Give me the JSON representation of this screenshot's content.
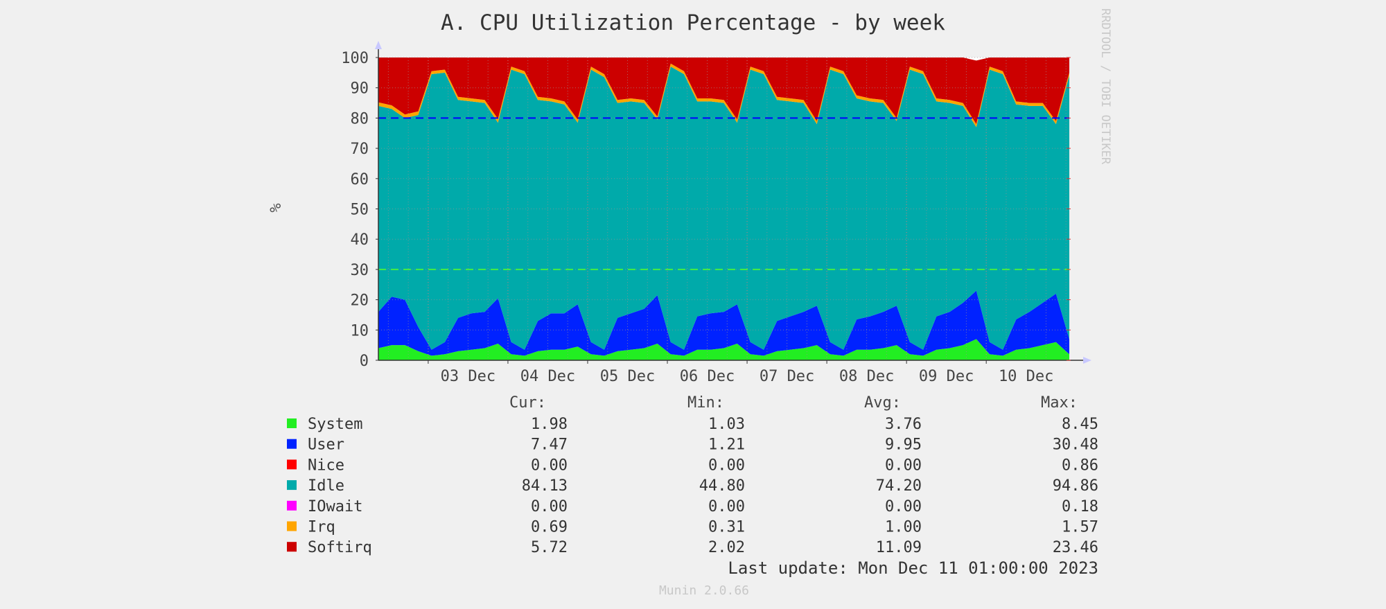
{
  "chart_data": {
    "type": "area",
    "title": "A. CPU Utilization Percentage - by week",
    "ylabel": "%",
    "xlabel": "",
    "ylim": [
      0,
      100
    ],
    "yticks": [
      0,
      10,
      20,
      30,
      40,
      50,
      60,
      70,
      80,
      90,
      100
    ],
    "grid": true,
    "stacked": true,
    "x_range": [
      "2023-12-02T09:00",
      "2023-12-11T01:00"
    ],
    "x_tick_labels": [
      {
        "date": "2023-12-03",
        "label": "03 Dec"
      },
      {
        "date": "2023-12-04",
        "label": "04 Dec"
      },
      {
        "date": "2023-12-05",
        "label": "05 Dec"
      },
      {
        "date": "2023-12-06",
        "label": "06 Dec"
      },
      {
        "date": "2023-12-07",
        "label": "07 Dec"
      },
      {
        "date": "2023-12-08",
        "label": "08 Dec"
      },
      {
        "date": "2023-12-09",
        "label": "09 Dec"
      },
      {
        "date": "2023-12-10",
        "label": "10 Dec"
      }
    ],
    "x": [
      "2023-12-02T09:00",
      "2023-12-02T13:00",
      "2023-12-02T17:00",
      "2023-12-02T21:00",
      "2023-12-03T01:00",
      "2023-12-03T05:00",
      "2023-12-03T09:00",
      "2023-12-03T13:00",
      "2023-12-03T17:00",
      "2023-12-03T21:00",
      "2023-12-04T01:00",
      "2023-12-04T05:00",
      "2023-12-04T09:00",
      "2023-12-04T13:00",
      "2023-12-04T17:00",
      "2023-12-04T21:00",
      "2023-12-05T01:00",
      "2023-12-05T05:00",
      "2023-12-05T09:00",
      "2023-12-05T13:00",
      "2023-12-05T17:00",
      "2023-12-05T21:00",
      "2023-12-06T01:00",
      "2023-12-06T05:00",
      "2023-12-06T09:00",
      "2023-12-06T13:00",
      "2023-12-06T17:00",
      "2023-12-06T21:00",
      "2023-12-07T01:00",
      "2023-12-07T05:00",
      "2023-12-07T09:00",
      "2023-12-07T13:00",
      "2023-12-07T17:00",
      "2023-12-07T21:00",
      "2023-12-08T01:00",
      "2023-12-08T05:00",
      "2023-12-08T09:00",
      "2023-12-08T13:00",
      "2023-12-08T17:00",
      "2023-12-08T21:00",
      "2023-12-09T01:00",
      "2023-12-09T05:00",
      "2023-12-09T09:00",
      "2023-12-09T13:00",
      "2023-12-09T17:00",
      "2023-12-09T21:00",
      "2023-12-10T01:00",
      "2023-12-10T05:00",
      "2023-12-10T09:00",
      "2023-12-10T13:00",
      "2023-12-10T17:00",
      "2023-12-10T21:00",
      "2023-12-11T01:00"
    ],
    "series": [
      {
        "name": "System",
        "color": "#22ee22",
        "values": [
          4,
          5,
          5,
          3,
          1.5,
          2,
          3,
          3.5,
          4,
          5.5,
          2,
          1.5,
          3,
          3.5,
          3.5,
          4.5,
          2,
          1.5,
          3,
          3.5,
          4,
          5.5,
          2,
          1.5,
          3.5,
          3.5,
          4,
          5.5,
          2,
          1.5,
          3,
          3.5,
          4,
          5,
          2,
          1.5,
          3.5,
          3.5,
          4,
          5,
          2,
          1.5,
          3.5,
          4,
          5,
          7,
          2,
          1.5,
          3.5,
          4,
          5,
          6,
          2
        ]
      },
      {
        "name": "User",
        "color": "#0022ff",
        "values": [
          12,
          16,
          15,
          8,
          2,
          4,
          11,
          12,
          12,
          15,
          4,
          2,
          10,
          12,
          12,
          14,
          4,
          2,
          11,
          12,
          13,
          16,
          4,
          2,
          11,
          12,
          12,
          13,
          4,
          2,
          10,
          11,
          12,
          13,
          4,
          2,
          10,
          11,
          12,
          13,
          4,
          2,
          11,
          12,
          14,
          16,
          4,
          2,
          10,
          12,
          14,
          16,
          5
        ]
      },
      {
        "name": "Nice",
        "color": "#ff0000",
        "values": [
          0,
          0,
          0,
          0,
          0,
          0,
          0,
          0,
          0,
          0,
          0,
          0,
          0,
          0,
          0,
          0,
          0,
          0,
          0,
          0,
          0,
          0,
          0,
          0,
          0,
          0,
          0,
          0,
          0,
          0,
          0,
          0,
          0,
          0,
          0,
          0,
          0,
          0,
          0,
          0,
          0,
          0,
          0,
          0,
          0,
          0,
          0,
          0,
          0,
          0,
          0,
          0,
          0
        ]
      },
      {
        "name": "Idle",
        "color": "#00aaaa",
        "values": [
          68,
          62,
          60,
          70,
          91,
          89,
          72,
          70,
          69,
          58,
          90,
          91,
          73,
          70,
          69,
          60,
          90,
          90,
          71,
          70,
          68,
          58,
          91,
          91,
          71,
          70,
          69,
          60,
          90,
          91,
          73,
          71,
          69,
          60,
          90,
          91,
          73,
          71,
          69,
          61,
          90,
          91,
          71,
          69,
          65,
          54,
          90,
          91,
          71,
          68,
          65,
          56,
          87
        ]
      },
      {
        "name": "IOwait",
        "color": "#ff00ff",
        "values": [
          0,
          0,
          0,
          0,
          0,
          0,
          0,
          0,
          0,
          0,
          0,
          0,
          0,
          0,
          0,
          0,
          0,
          0,
          0,
          0,
          0,
          0,
          0,
          0,
          0,
          0,
          0,
          0,
          0,
          0,
          0,
          0,
          0,
          0,
          0,
          0,
          0,
          0,
          0,
          0,
          0,
          0,
          0,
          0,
          0,
          0,
          0,
          0,
          0,
          0,
          0,
          0,
          0
        ]
      },
      {
        "name": "Irq",
        "color": "#ffa500",
        "values": [
          1.2,
          1.2,
          1.2,
          1.2,
          1,
          1,
          1,
          1,
          1,
          1.2,
          1,
          1,
          1,
          1,
          1,
          1,
          1,
          1,
          1,
          1,
          1,
          1,
          1,
          1,
          1,
          1,
          1,
          1,
          1,
          1,
          1,
          1,
          1,
          1,
          1,
          1,
          1,
          1,
          1,
          1,
          1,
          1,
          1,
          1,
          1,
          1,
          1,
          1,
          1,
          1,
          1,
          1,
          1
        ]
      },
      {
        "name": "Softirq",
        "color": "#cc0000",
        "values": [
          14.8,
          15.8,
          18.8,
          17.8,
          4.5,
          4,
          13,
          13.5,
          14,
          20.3,
          3,
          4.5,
          13,
          13.5,
          14.5,
          20.5,
          3,
          5.5,
          14,
          13.5,
          14,
          19.5,
          2,
          4.5,
          13.5,
          13.5,
          14,
          20.5,
          3,
          4.5,
          13,
          13.5,
          14,
          21,
          3,
          4.5,
          12.5,
          13.5,
          14,
          20,
          3,
          4.5,
          13.5,
          14,
          15,
          21,
          3,
          4.5,
          14.5,
          15,
          15,
          21,
          5
        ]
      }
    ],
    "thresholds": [
      {
        "value": 80,
        "color": "#0000ff",
        "style": "dashed"
      },
      {
        "value": 30,
        "color": "#44ee44",
        "style": "dashed"
      }
    ],
    "legend_placement": "bottom"
  },
  "watermark": "RRDTOOL / TOBI OETIKER",
  "legend": {
    "headers": {
      "cur": "Cur:",
      "min": "Min:",
      "avg": "Avg:",
      "max": "Max:"
    },
    "rows": [
      {
        "label": "System",
        "color": "#22ee22",
        "cur": "1.98",
        "min": "1.03",
        "avg": "3.76",
        "max": "8.45"
      },
      {
        "label": "User",
        "color": "#0022ff",
        "cur": "7.47",
        "min": "1.21",
        "avg": "9.95",
        "max": "30.48"
      },
      {
        "label": "Nice",
        "color": "#ff0000",
        "cur": "0.00",
        "min": "0.00",
        "avg": "0.00",
        "max": "0.86"
      },
      {
        "label": "Idle",
        "color": "#00aaaa",
        "cur": "84.13",
        "min": "44.80",
        "avg": "74.20",
        "max": "94.86"
      },
      {
        "label": "IOwait",
        "color": "#ff00ff",
        "cur": "0.00",
        "min": "0.00",
        "avg": "0.00",
        "max": "0.18"
      },
      {
        "label": "Irq",
        "color": "#ffa500",
        "cur": "0.69",
        "min": "0.31",
        "avg": "1.00",
        "max": "1.57"
      },
      {
        "label": "Softirq",
        "color": "#cc0000",
        "cur": "5.72",
        "min": "2.02",
        "avg": "11.09",
        "max": "23.46"
      }
    ]
  },
  "last_update": "Last update: Mon Dec 11 01:00:00 2023",
  "footer": "Munin 2.0.66"
}
